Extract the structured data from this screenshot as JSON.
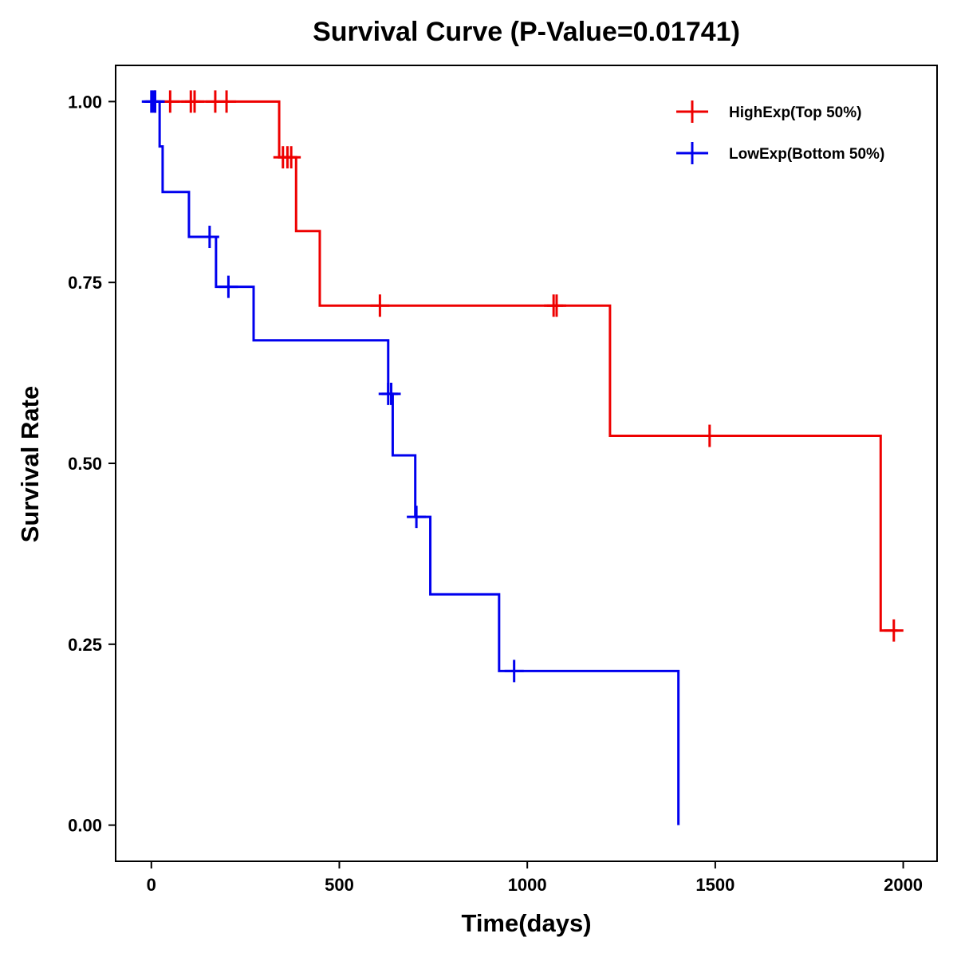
{
  "chart_data": {
    "type": "line",
    "subtype": "kaplan-meier-step",
    "title": "Survival Curve (P-Value=0.01741)",
    "xlabel": "Time(days)",
    "ylabel": "Survival Rate",
    "xlim": [
      -95,
      2090
    ],
    "ylim": [
      -0.05,
      1.05
    ],
    "xticks": [
      0,
      500,
      1000,
      1500,
      2000
    ],
    "xtick_labels": [
      "0",
      "500",
      "1000",
      "1500",
      "2000"
    ],
    "yticks": [
      0,
      0.25,
      0.5,
      0.75,
      1.0
    ],
    "ytick_labels": [
      "0.00",
      "0.25",
      "0.50",
      "0.75",
      "1.00"
    ],
    "grid": false,
    "legend_position": "top-right",
    "series": [
      {
        "name": "HighExp(Top 50%)",
        "color": "#ee0000",
        "steps": [
          [
            0,
            1.0
          ],
          [
            340,
            0.923
          ],
          [
            385,
            0.821
          ],
          [
            448,
            0.718
          ],
          [
            1220,
            0.538
          ],
          [
            1940,
            0.269
          ],
          [
            1985,
            0.269
          ]
        ],
        "censored": [
          [
            10,
            1.0
          ],
          [
            50,
            1.0
          ],
          [
            105,
            1.0
          ],
          [
            115,
            1.0
          ],
          [
            170,
            1.0
          ],
          [
            200,
            1.0
          ],
          [
            350,
            0.923
          ],
          [
            362,
            0.923
          ],
          [
            372,
            0.923
          ],
          [
            608,
            0.718
          ],
          [
            1070,
            0.718
          ],
          [
            1078,
            0.718
          ],
          [
            1485,
            0.538
          ],
          [
            1975,
            0.269
          ]
        ]
      },
      {
        "name": "LowExp(Bottom 50%)",
        "color": "#0000ee",
        "steps": [
          [
            0,
            1.0
          ],
          [
            22,
            0.938
          ],
          [
            30,
            0.875
          ],
          [
            100,
            0.813
          ],
          [
            172,
            0.744
          ],
          [
            272,
            0.67
          ],
          [
            630,
            0.596
          ],
          [
            642,
            0.511
          ],
          [
            702,
            0.426
          ],
          [
            742,
            0.319
          ],
          [
            925,
            0.213
          ],
          [
            1402,
            0.0
          ]
        ],
        "censored": [
          [
            0,
            1.0
          ],
          [
            5,
            1.0
          ],
          [
            10,
            1.0
          ],
          [
            155,
            0.813
          ],
          [
            205,
            0.744
          ],
          [
            630,
            0.596
          ],
          [
            638,
            0.596
          ],
          [
            705,
            0.426
          ],
          [
            965,
            0.213
          ]
        ]
      }
    ]
  }
}
